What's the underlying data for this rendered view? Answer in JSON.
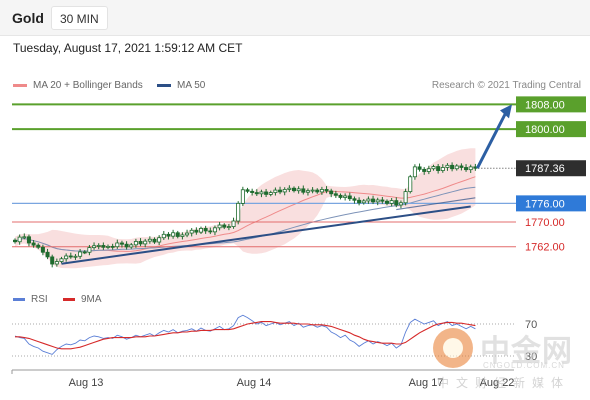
{
  "header": {
    "symbol": "Gold",
    "timeframe": "30 MIN"
  },
  "datetime": "Tuesday, August 17, 2021 1:59:12 AM CET",
  "legend": {
    "items": [
      {
        "label": "MA 20 + Bollinger Bands",
        "color": "#ef8a8a"
      },
      {
        "label": "MA 50",
        "color": "#2c4f86"
      }
    ],
    "credit": "Research © 2021 Trading Central"
  },
  "rsi_legend": {
    "items": [
      {
        "label": "RSI",
        "color": "#5b7fd6"
      },
      {
        "label": "9MA",
        "color": "#d62a2a"
      }
    ]
  },
  "colors": {
    "resistance": "#5aa02c",
    "pivot": "#2f7ad8",
    "support": "#e36c6c",
    "current": "#2e2e2e",
    "trendline": "#2c4f86",
    "arrow": "#2c5fa3",
    "band_fill": "#f7d4d4",
    "candle": "#1f6b2e"
  },
  "price_levels": [
    {
      "name": "resistance-2",
      "value": 1808.0,
      "label": "1808.00",
      "style": "resistance"
    },
    {
      "name": "resistance-1",
      "value": 1800.0,
      "label": "1800.00",
      "style": "resistance"
    },
    {
      "name": "last-price",
      "value": 1787.36,
      "label": "1787.36",
      "style": "current"
    },
    {
      "name": "pivot",
      "value": 1776.0,
      "label": "1776.00",
      "style": "pivot"
    },
    {
      "name": "support-1",
      "value": 1770.0,
      "label": "1770.00",
      "style": "support"
    },
    {
      "name": "support-2",
      "value": 1762.0,
      "label": "1762.00",
      "style": "support"
    }
  ],
  "watermark": {
    "brand": "中金网",
    "url": "CNGOLD.COM.CN",
    "tagline": "中文财经新媒体"
  },
  "chart_data": [
    {
      "type": "candlestick",
      "title": "Gold",
      "x_ticks": [
        "Aug 13",
        "Aug 14",
        "Aug 17",
        "Aug 22"
      ],
      "ylim": [
        1748.0,
        1812.0
      ],
      "closes": [
        1763.6,
        1765.1,
        1765.2,
        1763.2,
        1762.5,
        1761.8,
        1760.2,
        1758.7,
        1756.4,
        1757.2,
        1758.1,
        1759.0,
        1758.8,
        1758.9,
        1760.3,
        1760.2,
        1761.7,
        1762.3,
        1762.4,
        1761.8,
        1762.1,
        1762.0,
        1763.2,
        1762.8,
        1761.9,
        1762.6,
        1763.7,
        1762.9,
        1763.8,
        1764.4,
        1763.5,
        1764.9,
        1766.0,
        1765.4,
        1766.5,
        1765.3,
        1765.8,
        1766.4,
        1767.3,
        1766.7,
        1767.9,
        1767.1,
        1766.8,
        1768.1,
        1769.0,
        1768.3,
        1768.5,
        1770.3,
        1776.0,
        1780.4,
        1779.9,
        1779.5,
        1779.1,
        1779.7,
        1778.9,
        1779.5,
        1780.3,
        1779.7,
        1780.5,
        1780.9,
        1780.1,
        1780.7,
        1779.6,
        1780.1,
        1780.3,
        1779.7,
        1780.5,
        1780.0,
        1779.1,
        1778.6,
        1777.9,
        1778.4,
        1777.5,
        1777.0,
        1776.2,
        1776.8,
        1777.4,
        1776.5,
        1777.1,
        1776.7,
        1776.0,
        1776.9,
        1775.5,
        1776.2,
        1779.8,
        1784.6,
        1787.8,
        1787.0,
        1786.3,
        1787.2,
        1787.9,
        1786.6,
        1787.6,
        1788.3,
        1787.2,
        1788.1,
        1787.6,
        1786.9,
        1787.8,
        1787.36
      ],
      "series": [
        {
          "name": "MA 20 + Bollinger Bands",
          "type": "band",
          "color": "#ef8a8a"
        },
        {
          "name": "MA 50",
          "type": "line",
          "color": "#2c4f86"
        }
      ],
      "levels": [
        1808.0,
        1800.0,
        1787.36,
        1776.0,
        1770.0,
        1762.0
      ],
      "annotations": [
        "support trendline",
        "rising forecast arrow toward 1808.00"
      ]
    },
    {
      "type": "line",
      "title": "RSI",
      "ylim": [
        15,
        85
      ],
      "reference_lines": [
        70,
        30
      ],
      "tick_labels": [
        "70",
        "30"
      ],
      "series": [
        {
          "name": "RSI",
          "color": "#5b7fd6",
          "values": [
            55,
            53,
            52,
            45,
            42,
            40,
            36,
            34,
            32,
            38,
            42,
            45,
            44,
            46,
            50,
            49,
            53,
            55,
            54,
            52,
            53,
            52,
            56,
            54,
            51,
            53,
            56,
            54,
            56,
            58,
            55,
            59,
            62,
            60,
            63,
            59,
            61,
            62,
            64,
            61,
            65,
            62,
            61,
            64,
            67,
            63,
            64,
            68,
            78,
            81,
            78,
            74,
            70,
            72,
            68,
            70,
            72,
            69,
            71,
            73,
            68,
            71,
            66,
            68,
            69,
            66,
            68,
            66,
            60,
            57,
            53,
            56,
            50,
            47,
            42,
            46,
            49,
            45,
            48,
            46,
            43,
            46,
            40,
            44,
            60,
            72,
            76,
            73,
            70,
            72,
            74,
            68,
            71,
            73,
            68,
            70,
            67,
            64,
            67,
            64
          ]
        },
        {
          "name": "9MA",
          "color": "#d62a2a",
          "values": [
            54,
            54,
            53,
            52,
            50,
            48,
            46,
            44,
            42,
            40,
            39,
            39,
            39,
            40,
            41,
            43,
            45,
            47,
            49,
            51,
            52,
            53,
            53,
            53,
            53,
            53,
            54,
            54,
            54,
            55,
            55,
            56,
            57,
            58,
            59,
            59,
            60,
            60,
            61,
            61,
            62,
            62,
            62,
            63,
            63,
            63,
            63,
            64,
            66,
            68,
            70,
            71,
            72,
            73,
            73,
            73,
            72,
            71,
            71,
            71,
            71,
            70,
            70,
            70,
            69,
            69,
            69,
            68,
            67,
            65,
            63,
            61,
            59,
            56,
            54,
            51,
            49,
            48,
            47,
            46,
            46,
            46,
            45,
            45,
            47,
            51,
            55,
            59,
            62,
            65,
            68,
            70,
            71,
            72,
            72,
            71,
            71,
            70,
            69,
            68
          ]
        }
      ]
    }
  ]
}
